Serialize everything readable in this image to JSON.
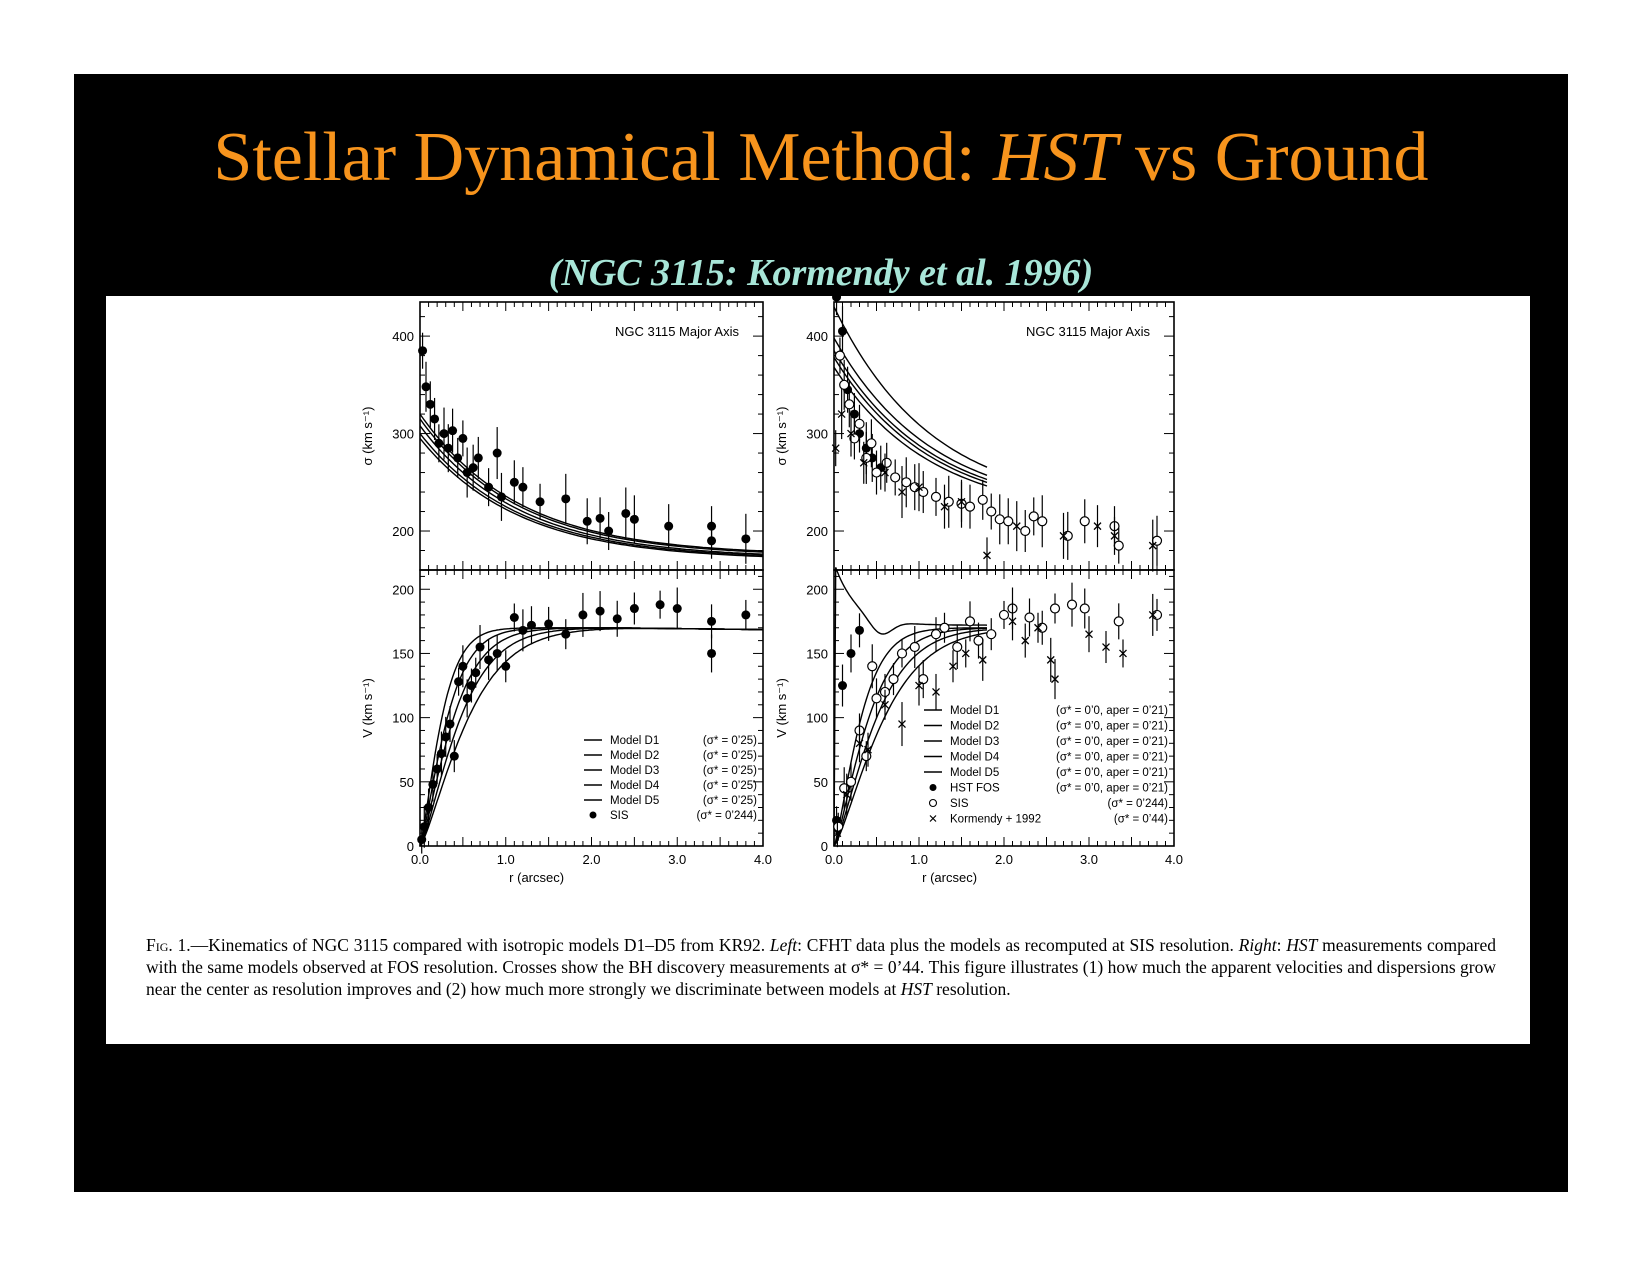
{
  "slide": {
    "title_main": "Stellar Dynamical Method: ",
    "title_italic": "HST",
    "title_end": " vs Ground",
    "subtitle": "(NGC 3115: Kormendy et al. 1996)"
  },
  "caption": {
    "fig": "Fig.",
    "p1": " 1.—Kinematics of NGC 3115 compared with isotropic models D1–D5 from KR92. ",
    "left": "Left",
    "p2": ": CFHT data plus the models as recomputed at SIS resolution. ",
    "right": "Right",
    "p3": ":",
    "hst1": "HST",
    "p4": " measurements compared with the same models observed at FOS resolution. Crosses show the BH discovery measurements at σ* = 0’44. This figure illustrates (1) how much the apparent velocities and dispersions grow near the center as resolution improves and (2) how much more strongly we discriminate between models at ",
    "hst2": "HST",
    "p5": " resolution."
  },
  "chart_data": [
    {
      "type": "scatter",
      "panel": "left-top",
      "title": "NGC 3115   Major Axis",
      "xlabel": "",
      "ylabel": "σ  (km s⁻¹)",
      "xlim": [
        0,
        4.0
      ],
      "ylim": [
        160,
        435
      ],
      "yticks": [
        200,
        300,
        400
      ],
      "series": [
        {
          "name": "SIS",
          "marker": "filled-circle",
          "x": [
            0.03,
            0.07,
            0.12,
            0.17,
            0.22,
            0.28,
            0.33,
            0.38,
            0.44,
            0.5,
            0.55,
            0.62,
            0.68,
            0.8,
            0.9,
            0.95,
            1.1,
            1.2,
            1.4,
            1.7,
            1.95,
            2.1,
            2.2,
            2.4,
            2.5,
            2.9,
            3.4,
            3.4,
            3.8
          ],
          "y": [
            385,
            348,
            330,
            315,
            290,
            300,
            285,
            303,
            275,
            295,
            260,
            265,
            275,
            245,
            280,
            235,
            250,
            245,
            230,
            233,
            210,
            213,
            200,
            218,
            212,
            205,
            205,
            190,
            192
          ]
        }
      ],
      "models": [
        {
          "name": "Model D1",
          "y0": 320,
          "yend": 175
        },
        {
          "name": "Model D2",
          "y0": 315,
          "yend": 174
        },
        {
          "name": "Model D3",
          "y0": 308,
          "yend": 172
        },
        {
          "name": "Model D4",
          "y0": 300,
          "yend": 171
        },
        {
          "name": "Model D5",
          "y0": 295,
          "yend": 170
        }
      ]
    },
    {
      "type": "scatter",
      "panel": "left-bottom",
      "xlabel": "r  (arcsec)",
      "ylabel": "V  (km s⁻¹)",
      "xlim": [
        0,
        4.0
      ],
      "ylim": [
        0,
        215
      ],
      "xticks": [
        "0.0",
        "1.0",
        "2.0",
        "3.0",
        "4.0"
      ],
      "yticks": [
        0,
        50,
        100,
        150,
        200
      ],
      "legend": [
        {
          "label": "Model D1",
          "sig": "(σ* = 0’25)"
        },
        {
          "label": "Model D2",
          "sig": "(σ* = 0’25)"
        },
        {
          "label": "Model D3",
          "sig": "(σ* = 0’25)"
        },
        {
          "label": "Model D4",
          "sig": "(σ* = 0’25)"
        },
        {
          "label": "Model D5",
          "sig": "(σ* = 0’25)"
        },
        {
          "label": "SIS",
          "sig": "(σ* = 0’244)"
        }
      ],
      "series": [
        {
          "name": "SIS",
          "marker": "filled-circle",
          "x": [
            0.02,
            0.05,
            0.1,
            0.15,
            0.2,
            0.25,
            0.3,
            0.35,
            0.4,
            0.45,
            0.5,
            0.55,
            0.6,
            0.65,
            0.7,
            0.8,
            0.9,
            1.0,
            1.1,
            1.2,
            1.3,
            1.5,
            1.7,
            1.9,
            2.1,
            2.3,
            2.5,
            2.8,
            3.0,
            3.4,
            3.4,
            3.8
          ],
          "y": [
            5,
            15,
            30,
            48,
            60,
            72,
            85,
            95,
            70,
            128,
            140,
            115,
            125,
            135,
            155,
            145,
            150,
            140,
            178,
            168,
            172,
            173,
            165,
            180,
            183,
            177,
            185,
            188,
            185,
            150,
            175,
            180
          ]
        }
      ],
      "models": [
        {
          "name": "Model D1",
          "rs": 0.28
        },
        {
          "name": "Model D2",
          "rs": 0.35
        },
        {
          "name": "Model D3",
          "rs": 0.43
        },
        {
          "name": "Model D4",
          "rs": 0.52
        },
        {
          "name": "Model D5",
          "rs": 0.62
        }
      ]
    },
    {
      "type": "scatter",
      "panel": "right-top",
      "title": "NGC 3115   Major Axis",
      "xlabel": "",
      "ylabel": "σ  (km s⁻¹)",
      "xlim": [
        0,
        4.0
      ],
      "ylim": [
        160,
        435
      ],
      "yticks": [
        200,
        300,
        400
      ],
      "series": [
        {
          "name": "HST FOS",
          "marker": "filled-circle",
          "x": [
            0.03,
            0.1,
            0.16,
            0.24,
            0.3,
            0.38,
            0.45,
            0.55
          ],
          "y": [
            440,
            405,
            345,
            320,
            300,
            285,
            275,
            265
          ]
        },
        {
          "name": "SIS",
          "marker": "open-circle",
          "x": [
            0.07,
            0.12,
            0.18,
            0.24,
            0.3,
            0.38,
            0.44,
            0.5,
            0.62,
            0.72,
            0.85,
            0.95,
            1.05,
            1.2,
            1.35,
            1.5,
            1.6,
            1.75,
            1.85,
            1.95,
            2.05,
            2.25,
            2.35,
            2.45,
            2.75,
            2.95,
            3.3,
            3.35,
            3.8
          ],
          "y": [
            380,
            350,
            330,
            295,
            310,
            275,
            290,
            260,
            270,
            255,
            250,
            245,
            240,
            235,
            230,
            228,
            225,
            232,
            220,
            212,
            210,
            200,
            215,
            210,
            195,
            210,
            205,
            185,
            190
          ]
        },
        {
          "name": "Kormendy + 1992",
          "marker": "cross",
          "x": [
            0.02,
            0.09,
            0.2,
            0.35,
            0.6,
            0.8,
            1.0,
            1.3,
            1.5,
            1.8,
            2.15,
            2.7,
            3.1,
            3.3,
            3.75
          ],
          "y": [
            285,
            320,
            300,
            270,
            260,
            240,
            245,
            225,
            230,
            175,
            205,
            195,
            205,
            195,
            185
          ]
        }
      ],
      "models": [
        {
          "name": "Model D1",
          "y0": 430,
          "yend": 222
        },
        {
          "name": "Model D2",
          "y0": 398,
          "yend": 220
        },
        {
          "name": "Model D3",
          "y0": 385,
          "yend": 218
        },
        {
          "name": "Model D4",
          "y0": 378,
          "yend": 216
        },
        {
          "name": "Model D5",
          "y0": 368,
          "yend": 214
        }
      ]
    },
    {
      "type": "scatter",
      "panel": "right-bottom",
      "xlabel": "r  (arcsec)",
      "ylabel": "V  (km s⁻¹)",
      "xlim": [
        0,
        4.0
      ],
      "ylim": [
        0,
        215
      ],
      "xticks": [
        "0.0",
        "1.0",
        "2.0",
        "3.0",
        "4.0"
      ],
      "yticks": [
        0,
        50,
        100,
        150,
        200
      ],
      "legend": [
        {
          "label": "Model D1",
          "sig": "(σ* = 0’0, aper = 0’21)"
        },
        {
          "label": "Model D2",
          "sig": "(σ* = 0’0, aper = 0’21)"
        },
        {
          "label": "Model D3",
          "sig": "(σ* = 0’0, aper = 0’21)"
        },
        {
          "label": "Model D4",
          "sig": "(σ* = 0’0, aper = 0’21)"
        },
        {
          "label": "Model D5",
          "sig": "(σ* = 0’0, aper = 0’21)"
        },
        {
          "label": "HST FOS",
          "sig": "(σ* = 0’0, aper = 0’21)"
        },
        {
          "label": "SIS",
          "sig": "(σ* = 0’244)"
        },
        {
          "label": "Kormendy + 1992",
          "sig": "(σ* = 0’44)"
        }
      ],
      "series": [
        {
          "name": "HST FOS",
          "marker": "filled-circle",
          "x": [
            0.03,
            0.1,
            0.2,
            0.3
          ],
          "y": [
            20,
            125,
            150,
            168
          ]
        },
        {
          "name": "SIS",
          "marker": "open-circle",
          "x": [
            0.05,
            0.12,
            0.2,
            0.3,
            0.38,
            0.45,
            0.5,
            0.6,
            0.7,
            0.8,
            0.95,
            1.05,
            1.2,
            1.3,
            1.45,
            1.6,
            1.7,
            1.85,
            2.0,
            2.1,
            2.3,
            2.45,
            2.6,
            2.8,
            2.95,
            3.35,
            3.8
          ],
          "y": [
            15,
            45,
            50,
            90,
            70,
            140,
            115,
            120,
            130,
            150,
            155,
            130,
            165,
            170,
            155,
            175,
            160,
            165,
            180,
            185,
            178,
            170,
            185,
            188,
            185,
            175,
            180
          ]
        },
        {
          "name": "Kormendy + 1992",
          "marker": "cross",
          "x": [
            0.04,
            0.15,
            0.3,
            0.4,
            0.6,
            0.8,
            1.0,
            1.2,
            1.4,
            1.55,
            1.75,
            2.1,
            2.25,
            2.4,
            2.55,
            2.6,
            3.0,
            3.2,
            3.4,
            3.75
          ],
          "y": [
            10,
            40,
            80,
            75,
            110,
            95,
            125,
            120,
            140,
            150,
            145,
            175,
            160,
            170,
            145,
            130,
            165,
            155,
            150,
            180
          ]
        }
      ],
      "models": [
        {
          "name": "Model D1",
          "kind": "peak"
        },
        {
          "name": "Model D2",
          "rs": 0.35
        },
        {
          "name": "Model D3",
          "rs": 0.45
        },
        {
          "name": "Model D4",
          "rs": 0.55
        },
        {
          "name": "Model D5",
          "rs": 0.65
        }
      ]
    }
  ]
}
